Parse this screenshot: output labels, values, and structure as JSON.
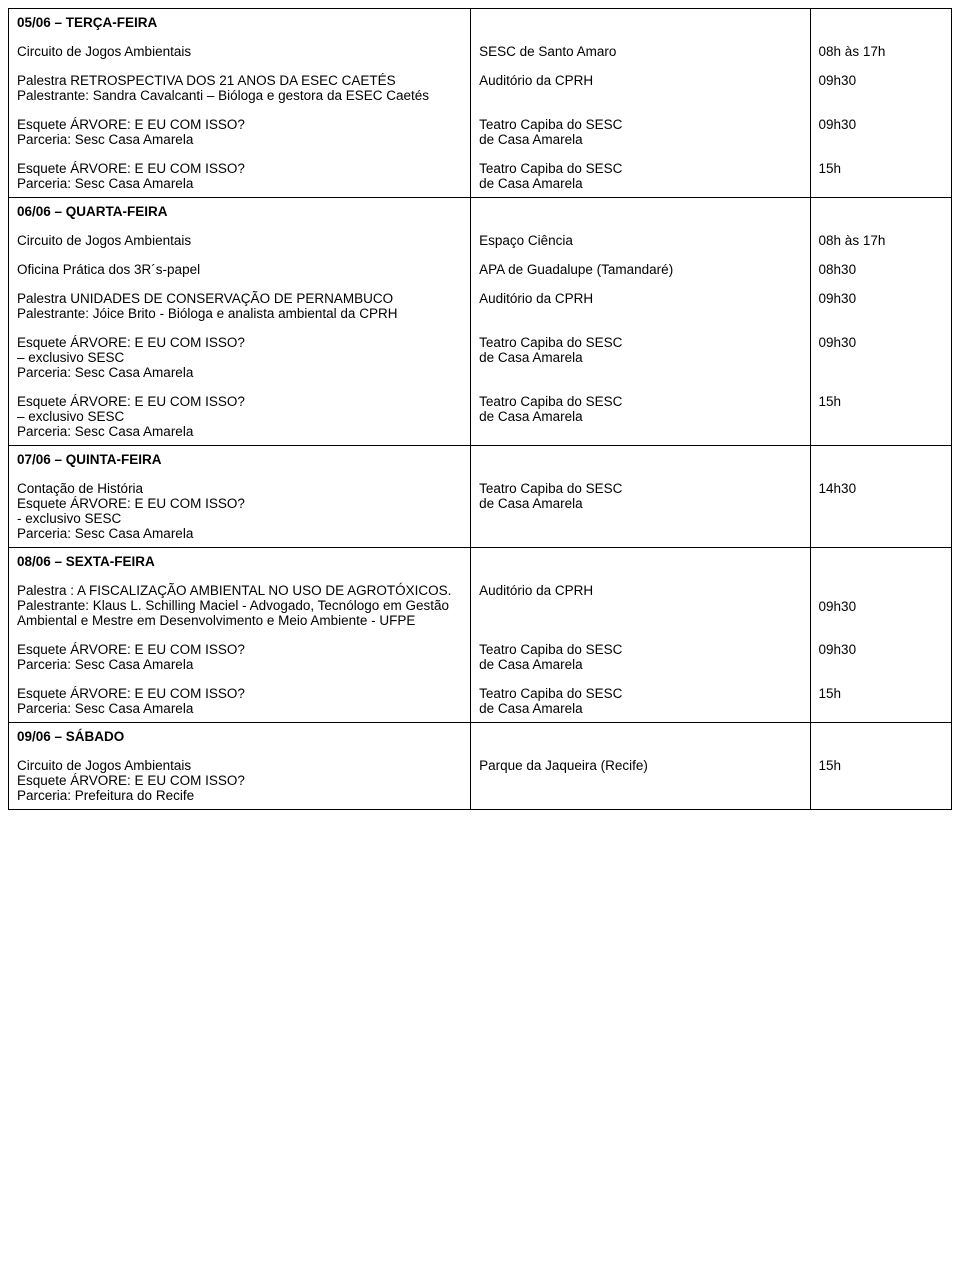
{
  "days": [
    {
      "header": "05/06 – TERÇA-FEIRA",
      "events": [
        {
          "title": "Circuito de Jogos Ambientais",
          "location": "SESC de Santo Amaro",
          "time": "08h às 17h"
        },
        {
          "title": "Palestra RETROSPECTIVA DOS 21 ANOS DA ESEC CAETÉS\nPalestrante: Sandra Cavalcanti – Bióloga e gestora da ESEC Caetés",
          "location": "Auditório da CPRH",
          "time": "09h30"
        },
        {
          "title": "Esquete ÁRVORE: E EU COM ISSO?\nParceria: Sesc Casa Amarela",
          "location": "Teatro Capiba do SESC\nde Casa Amarela",
          "time": "09h30"
        },
        {
          "title": "Esquete ÁRVORE: E EU COM ISSO?\nParceria: Sesc Casa Amarela",
          "location": "Teatro Capiba do SESC\nde Casa Amarela",
          "time": "15h"
        }
      ]
    },
    {
      "header": "06/06 – QUARTA-FEIRA",
      "events": [
        {
          "title": "Circuito de Jogos Ambientais",
          "location": "Espaço Ciência",
          "time": "08h às 17h"
        },
        {
          "title": "Oficina Prática dos 3R´s-papel",
          "location": "APA de Guadalupe (Tamandaré)",
          "time": "08h30"
        },
        {
          "title": "Palestra UNIDADES DE CONSERVAÇÃO DE PERNAMBUCO\nPalestrante: Jóice Brito - Bióloga e analista ambiental da CPRH",
          "location": "Auditório da CPRH",
          "time": "09h30"
        },
        {
          "title": "Esquete ÁRVORE: E EU COM ISSO?\n– exclusivo SESC\nParceria: Sesc Casa Amarela",
          "location": "Teatro Capiba do SESC\nde Casa Amarela",
          "time": "09h30"
        },
        {
          "title": "Esquete ÁRVORE: E EU COM ISSO?\n– exclusivo SESC\nParceria: Sesc Casa Amarela",
          "location": "Teatro Capiba do SESC\nde Casa Amarela",
          "time": "15h"
        }
      ]
    },
    {
      "header": "07/06 – QUINTA-FEIRA",
      "events": [
        {
          "title": "Contação de História\nEsquete ÁRVORE: E EU COM ISSO?\n- exclusivo SESC\nParceria: Sesc Casa Amarela",
          "location": "Teatro Capiba do SESC\nde Casa Amarela",
          "time": "14h30"
        }
      ]
    },
    {
      "header": "08/06 – SEXTA-FEIRA",
      "events": [
        {
          "title": "Palestra : A FISCALIZAÇÃO AMBIENTAL NO USO DE AGROTÓXICOS.\nPalestrante:  Klaus L. Schilling Maciel - Advogado, Tecnólogo em Gestão Ambiental e Mestre em Desenvolvimento e Meio Ambiente - UFPE",
          "location": "Auditório da CPRH",
          "time": "09h30",
          "timePad": true
        },
        {
          "title": "Esquete ÁRVORE: E EU COM ISSO?\nParceria: Sesc Casa Amarela",
          "location": "Teatro Capiba do SESC\nde Casa Amarela",
          "time": "09h30"
        },
        {
          "title": "Esquete ÁRVORE: E EU COM ISSO?\nParceria: Sesc Casa Amarela",
          "location": "Teatro Capiba do SESC\nde Casa Amarela",
          "time": "15h"
        }
      ]
    },
    {
      "header": "09/06 – SÁBADO",
      "events": [
        {
          "title": "Circuito de Jogos Ambientais\nEsquete ÁRVORE: E EU COM ISSO?\nParceria: Prefeitura do Recife",
          "location": "Parque da Jaqueira (Recife)",
          "time": "15h"
        }
      ]
    }
  ]
}
